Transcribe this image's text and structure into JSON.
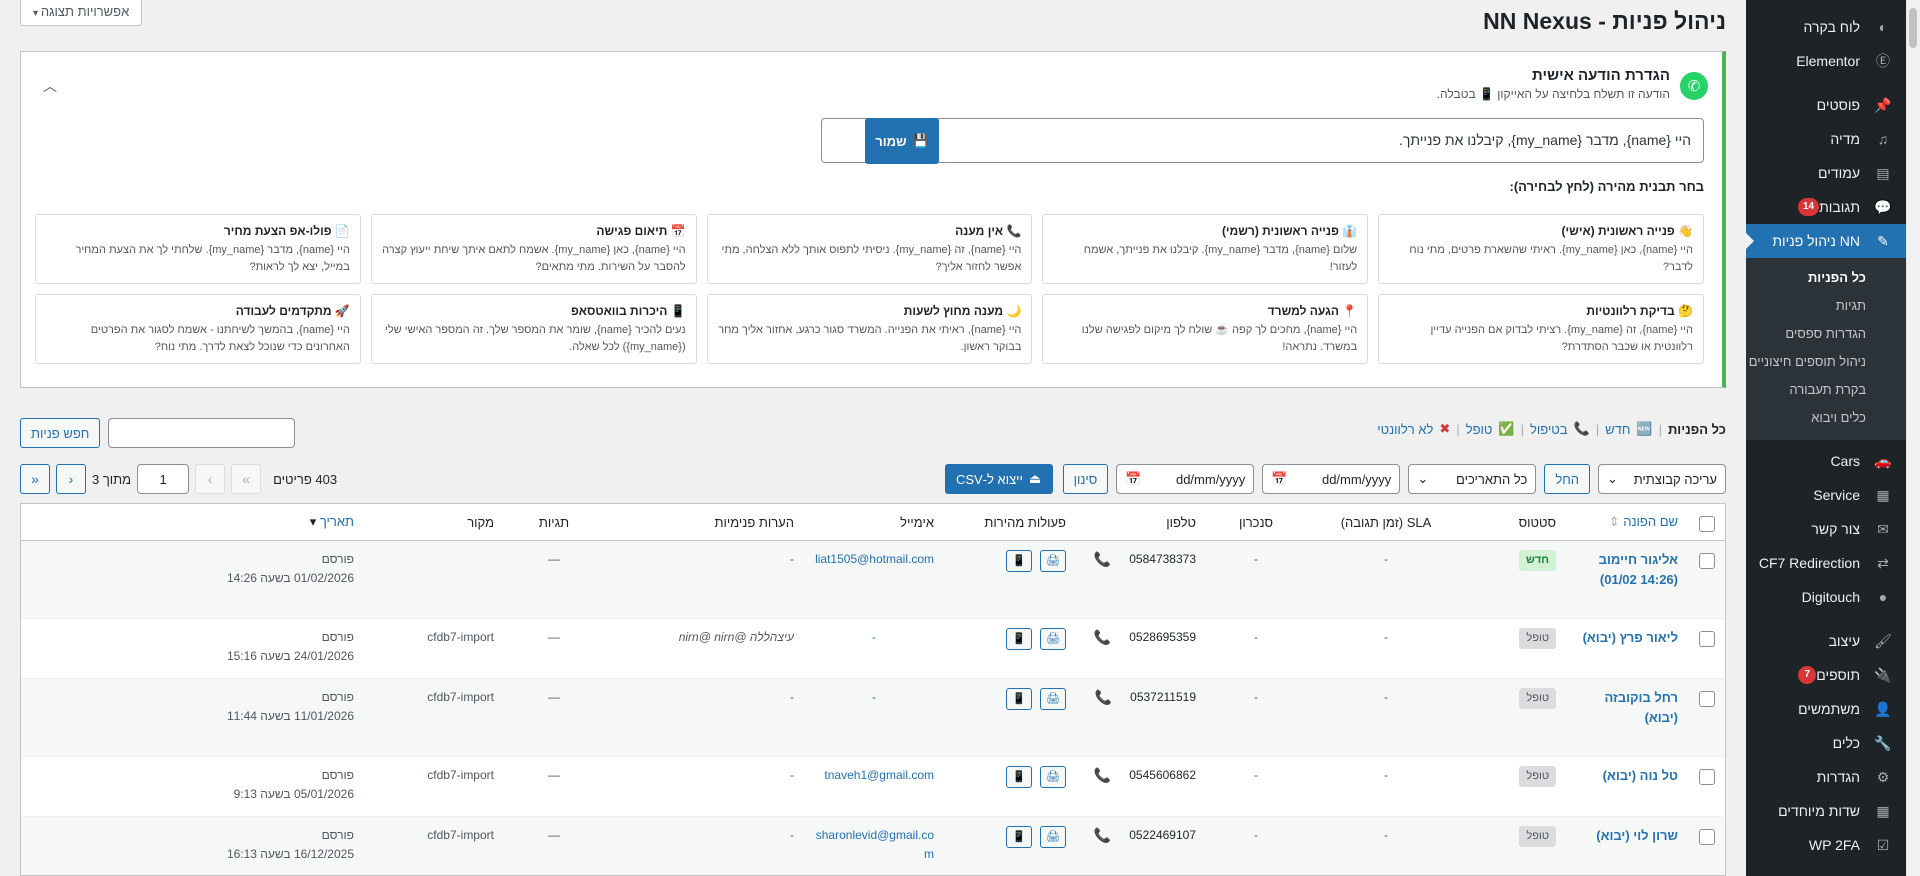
{
  "sidebar": {
    "items": [
      {
        "label": "לוח בקרה",
        "icon": "dashboard-icon",
        "glyph": "◐"
      },
      {
        "label": "Elementor",
        "icon": "elementor-icon",
        "glyph": "Ⓔ"
      },
      {
        "label": "פוסטים",
        "icon": "pin-icon",
        "glyph": "📌"
      },
      {
        "label": "מדיה",
        "icon": "media-icon",
        "glyph": "♫"
      },
      {
        "label": "עמודים",
        "icon": "pages-icon",
        "glyph": "▤"
      },
      {
        "label": "תגובות",
        "icon": "comments-icon",
        "glyph": "💬",
        "badge": "14"
      },
      {
        "label": "NN ניהול פניות",
        "icon": "form-icon",
        "glyph": "✎",
        "current": true
      }
    ],
    "submenu": [
      "כל הפניות",
      "תגיות",
      "הגדרות ספסים",
      "ניהול תוספים חיצוניים",
      "בקרת תעבורה",
      "כלים ויבוא"
    ],
    "items2": [
      {
        "label": "Cars",
        "icon": "car-icon",
        "glyph": "🚗"
      },
      {
        "label": "Service",
        "icon": "service-icon",
        "glyph": "▦"
      },
      {
        "label": "צור קשר",
        "icon": "mail-icon",
        "glyph": "✉"
      },
      {
        "label": "CF7 Redirection",
        "icon": "redirect-icon",
        "glyph": "⇄"
      },
      {
        "label": "Digitouch",
        "icon": "digitouch-icon",
        "glyph": "●"
      },
      {
        "label": "עיצוב",
        "icon": "appearance-icon",
        "glyph": "🖌"
      },
      {
        "label": "תוספים",
        "icon": "plugins-icon",
        "glyph": "🔌",
        "badge": "7"
      },
      {
        "label": "משתמשים",
        "icon": "users-icon",
        "glyph": "👤"
      },
      {
        "label": "כלים",
        "icon": "tools-icon",
        "glyph": "🔧"
      },
      {
        "label": "הגדרות",
        "icon": "settings-icon",
        "glyph": "⚙"
      },
      {
        "label": "שדות מיוחדים",
        "icon": "fields-icon",
        "glyph": "▦"
      },
      {
        "label": "WP 2FA",
        "icon": "shield-icon",
        "glyph": "☑"
      }
    ]
  },
  "page": {
    "title": "ניהול פניות - NN Nexus",
    "screen_options": "אפשרויות תצוגה"
  },
  "panel": {
    "title": "הגדרת הודעה אישית",
    "subtitle": "הודעה זו תשלח בלחיצה על האייקון 📱 בטבלה.",
    "message_value": "היי {name}, מדבר {my_name}, קיבלנו את פנייתך.",
    "save_label": "שמור",
    "templates_label": "בחר תבנית מהירה (לחץ לבחירה):",
    "templates": [
      {
        "title": "👋 פנייה ראשונית (אישי)",
        "desc": "היי {name}, כאן {my_name}. ראיתי שהשארת פרטים, מתי נוח לדבר?"
      },
      {
        "title": "👔 פנייה ראשונית (רשמי)",
        "desc": "שלום {name}, מדבר {my_name}. קיבלנו את פנייתך, אשמח לעזור!"
      },
      {
        "title": "📞 אין מענה",
        "desc": "היי {name}, זה {my_name}. ניסיתי לתפוס אותך ללא הצלחה, מתי אפשר לחזור אליך?"
      },
      {
        "title": "📅 תיאום פגישה",
        "desc": "היי {name}, כאן {my_name}. אשמח לתאם איתך שיחת ייעוץ קצרה להסבר על השירות. מתי מתאים?"
      },
      {
        "title": "📄 פולו-אפ הצעת מחיר",
        "desc": "היי {name}, מדבר {my_name}. שלחתי לך את הצעת המחיר במייל, יצא לך לראות?"
      },
      {
        "title": "🤔 בדיקת רלוונטיות",
        "desc": "היי {name}, זה {my_name}. רציתי לבדוק אם הפנייה עדיין רלוונטית או שכבר הסתדרת?"
      },
      {
        "title": "📍 הגעה למשרד",
        "desc": "היי {name}, מחכים לך קפה ☕ שולח לך מיקום לפגישה שלנו במשרד. נתראה!"
      },
      {
        "title": "🌙 מענה מחוץ לשעות",
        "desc": "היי {name}, ראיתי את הפנייה. המשרד סגור כרגע, אחזור אליך מחר בבוקר ראשון."
      },
      {
        "title": "📱 היכרות בוואטסאפ",
        "desc": "נעים להכיר {name}, שומר את המספר שלך. זה המספר האישי שלי ({my_name}) לכל שאלה."
      },
      {
        "title": "🚀 מתקדמים לעבודה",
        "desc": "היי {name}, בהמשך לשיחתנו - אשמח לסגור את הפרטים האחרונים כדי שנוכל לצאת לדרך. מתי נוח?"
      }
    ]
  },
  "filters": {
    "all": "כל הפניות",
    "new": "חדש",
    "in_progress": "בטיפול",
    "handled": "טופל",
    "irrelevant": "לא רלוונטי",
    "search_button": "חפש פניות",
    "search_value": ""
  },
  "toolbar": {
    "bulk": "עריכה קבוצתית",
    "apply": "החל",
    "dates": "כל התאריכים",
    "date_from": "dd/mm/yyyy",
    "date_to": "dd/mm/yyyy",
    "filter": "סינון",
    "export": "ייצוא ל-CSV"
  },
  "pager": {
    "count": "403 פריטים",
    "first": "«",
    "prev": "‹",
    "page": "1",
    "of": "מתוך 3",
    "next": "›",
    "last": "»"
  },
  "columns": {
    "name": "שם הפונה",
    "status": "סטטוס",
    "sla": "SLA (זמן תגובה)",
    "sync": "סנכרון",
    "phone": "טלפון",
    "actions": "פעולות מהירות",
    "email": "אימייל",
    "notes": "הערות פנימיות",
    "tags": "תגיות",
    "source": "מקור",
    "date": "תאריך"
  },
  "rows": [
    {
      "name": "אליגור חיימוב (14:26 01/02)",
      "status": "חדש",
      "status_type": "new",
      "sla": "-",
      "sync": "-",
      "phone": "0584738373",
      "email": "liat1505@hotmail.com",
      "notes": "-",
      "tags": "—",
      "source": "",
      "date_label": "פורסם",
      "date": "01/02/2026 בשעה 14:26"
    },
    {
      "name": "ליאור פרץ (יבוא)",
      "status": "טופל",
      "status_type": "done",
      "sla": "-",
      "sync": "-",
      "phone": "0528695359",
      "email": "-",
      "notes": "עיצהללה @nirn@ nirn",
      "tags": "—",
      "source": "cfdb7-import",
      "date_label": "פורסם",
      "date": "24/01/2026 בשעה 15:16"
    },
    {
      "name": "רחל בוקובזה (יבוא)",
      "status": "טופל",
      "status_type": "done",
      "sla": "-",
      "sync": "-",
      "phone": "0537211519",
      "email": "-",
      "notes": "-",
      "tags": "—",
      "source": "cfdb7-import",
      "date_label": "פורסם",
      "date": "11/01/2026 בשעה 11:44"
    },
    {
      "name": "טל נוה (יבוא)",
      "status": "טופל",
      "status_type": "done",
      "sla": "-",
      "sync": "-",
      "phone": "0545606862",
      "email": "tnaveh1@gmail.com",
      "notes": "-",
      "tags": "—",
      "source": "cfdb7-import",
      "date_label": "פורסם",
      "date": "05/01/2026 בשעה 9:13"
    },
    {
      "name": "שרון לוי (יבוא)",
      "status": "טופל",
      "status_type": "done",
      "sla": "-",
      "sync": "-",
      "phone": "0522469107",
      "email": "sharonlevid@gmail.com",
      "notes": "-",
      "tags": "—",
      "source": "cfdb7-import",
      "date_label": "פורסם",
      "date": "16/12/2025 בשעה 16:13"
    }
  ]
}
